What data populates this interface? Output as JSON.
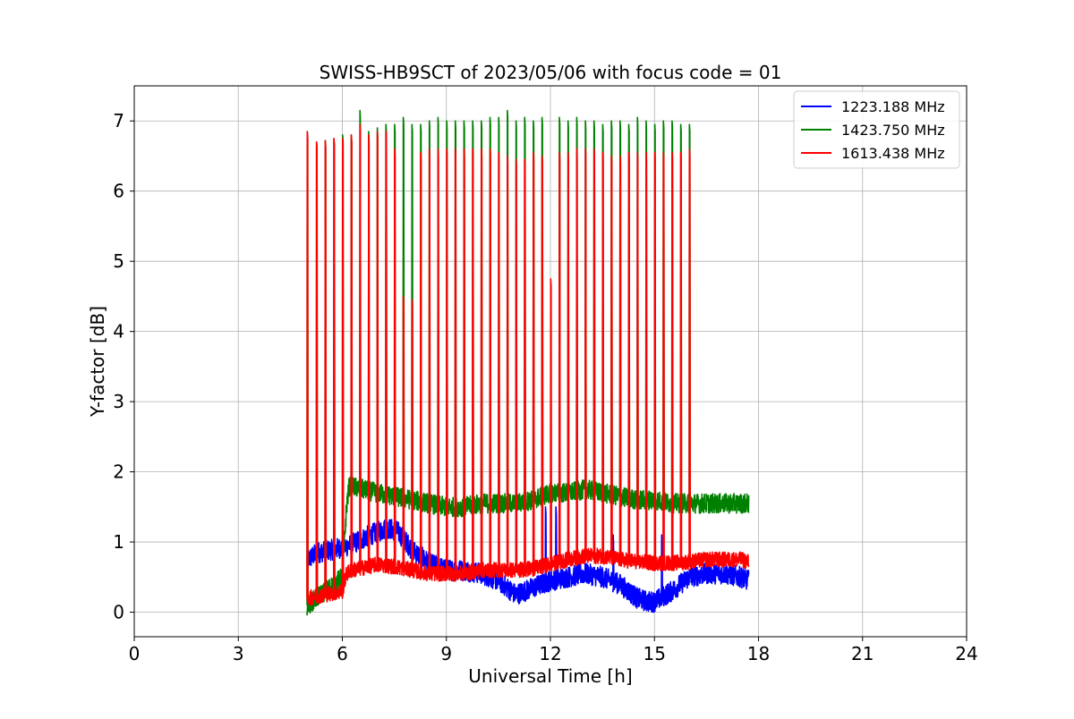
{
  "chart_data": {
    "type": "line",
    "title": "SWISS-HB9SCT of 2023/05/06 with focus code = 01",
    "xlabel": "Universal Time [h]",
    "ylabel": "Y-factor [dB]",
    "xlim": [
      0,
      24
    ],
    "ylim": [
      -0.35,
      7.5
    ],
    "xticks": [
      0,
      3,
      6,
      9,
      12,
      15,
      18,
      21,
      24
    ],
    "yticks": [
      0,
      1,
      2,
      3,
      4,
      5,
      6,
      7
    ],
    "grid": true,
    "legend_position": "top-right",
    "series": [
      {
        "name": "1223.188 MHz",
        "color": "#0000ff",
        "baseline": {
          "x": [
            5.0,
            5.3,
            5.8,
            6.2,
            6.8,
            7.3,
            7.6,
            8.0,
            8.5,
            9.0,
            9.5,
            10.0,
            10.5,
            11.0,
            11.5,
            12.0,
            12.5,
            13.0,
            13.5,
            14.0,
            14.5,
            14.8,
            15.0,
            15.5,
            16.0,
            16.5,
            17.0,
            17.5,
            17.7
          ],
          "y": [
            0.75,
            0.85,
            0.9,
            0.95,
            1.1,
            1.2,
            1.15,
            0.9,
            0.7,
            0.6,
            0.6,
            0.55,
            0.45,
            0.25,
            0.35,
            0.45,
            0.5,
            0.55,
            0.5,
            0.4,
            0.2,
            0.15,
            0.15,
            0.3,
            0.5,
            0.55,
            0.55,
            0.5,
            0.45
          ]
        },
        "noise": 0.15,
        "spike_heights": [],
        "extra_spikes": [
          {
            "x": 11.85,
            "y": 1.5
          },
          {
            "x": 12.15,
            "y": 1.5
          },
          {
            "x": 13.8,
            "y": 1.1
          },
          {
            "x": 15.2,
            "y": 1.1
          }
        ]
      },
      {
        "name": "1423.750 MHz",
        "color": "#008000",
        "baseline": {
          "x": [
            5.0,
            5.5,
            6.0,
            6.12,
            6.2,
            6.6,
            7.0,
            7.5,
            8.0,
            8.5,
            9.0,
            9.5,
            10.0,
            11.0,
            11.5,
            12.0,
            12.5,
            13.0,
            13.5,
            14.0,
            14.5,
            15.0,
            15.5,
            16.0,
            16.5,
            17.0,
            17.5,
            17.7
          ],
          "y": [
            0.1,
            0.3,
            0.5,
            1.5,
            1.8,
            1.75,
            1.7,
            1.65,
            1.6,
            1.55,
            1.5,
            1.5,
            1.55,
            1.55,
            1.6,
            1.7,
            1.7,
            1.75,
            1.7,
            1.65,
            1.6,
            1.6,
            1.55,
            1.55,
            1.55,
            1.55,
            1.55,
            1.55
          ]
        },
        "noise": 0.14,
        "spike_heights": [
          6.85,
          6.7,
          6.72,
          6.75,
          6.8,
          6.8,
          7.15,
          6.85,
          6.9,
          6.95,
          6.95,
          7.05,
          6.95,
          6.95,
          7.0,
          7.05,
          7.0,
          7.0,
          7.0,
          7.0,
          7.0,
          7.05,
          7.05,
          7.15,
          7.0,
          7.05,
          7.0,
          7.05,
          7.05,
          7.0,
          7.05,
          7.0,
          7.0,
          6.95,
          7.0,
          7.0,
          6.95,
          7.05,
          7.0,
          6.95,
          7.0,
          7.0,
          6.95,
          6.95
        ],
        "extra_spikes": []
      },
      {
        "name": "1613.438 MHz",
        "color": "#ff0000",
        "baseline": {
          "x": [
            5.0,
            5.5,
            6.0,
            6.12,
            6.3,
            7.0,
            7.5,
            8.0,
            8.5,
            9.0,
            9.5,
            10.0,
            10.5,
            11.0,
            11.5,
            12.0,
            12.5,
            13.0,
            13.5,
            14.0,
            14.5,
            15.0,
            15.5,
            16.0,
            16.5,
            17.0,
            17.5,
            17.7
          ],
          "y": [
            0.2,
            0.25,
            0.3,
            0.55,
            0.6,
            0.68,
            0.65,
            0.6,
            0.55,
            0.55,
            0.55,
            0.6,
            0.6,
            0.6,
            0.62,
            0.68,
            0.75,
            0.8,
            0.8,
            0.75,
            0.72,
            0.7,
            0.7,
            0.72,
            0.75,
            0.75,
            0.75,
            0.72
          ]
        },
        "noise": 0.11,
        "spike_heights": [
          6.85,
          6.7,
          6.72,
          6.75,
          6.75,
          6.8,
          6.95,
          6.8,
          6.85,
          6.85,
          6.6,
          4.5,
          4.45,
          6.55,
          6.6,
          6.6,
          6.6,
          6.6,
          6.6,
          6.6,
          6.6,
          6.6,
          6.55,
          6.5,
          6.45,
          6.45,
          6.55,
          6.5,
          6.55,
          6.55,
          6.6,
          6.6,
          6.6,
          6.55,
          6.5,
          6.5,
          6.55,
          6.55,
          6.55,
          6.55,
          6.55,
          6.55,
          6.55,
          6.6
        ],
        "extra_spikes": [
          {
            "x": 12.0,
            "y": 4.75
          }
        ]
      }
    ],
    "spike_times": [
      4.98,
      5.25,
      5.5,
      5.75,
      6.0,
      6.25,
      6.5,
      6.75,
      7.0,
      7.25,
      7.5,
      7.75,
      8.0,
      8.25,
      8.5,
      8.75,
      9.0,
      9.25,
      9.5,
      9.75,
      10.0,
      10.25,
      10.5,
      10.75,
      11.0,
      11.25,
      11.5,
      11.75,
      12.25,
      12.5,
      12.75,
      13.0,
      13.25,
      13.5,
      13.75,
      14.0,
      14.25,
      14.5,
      14.75,
      15.0,
      15.25,
      15.5,
      15.75,
      16.0
    ]
  }
}
